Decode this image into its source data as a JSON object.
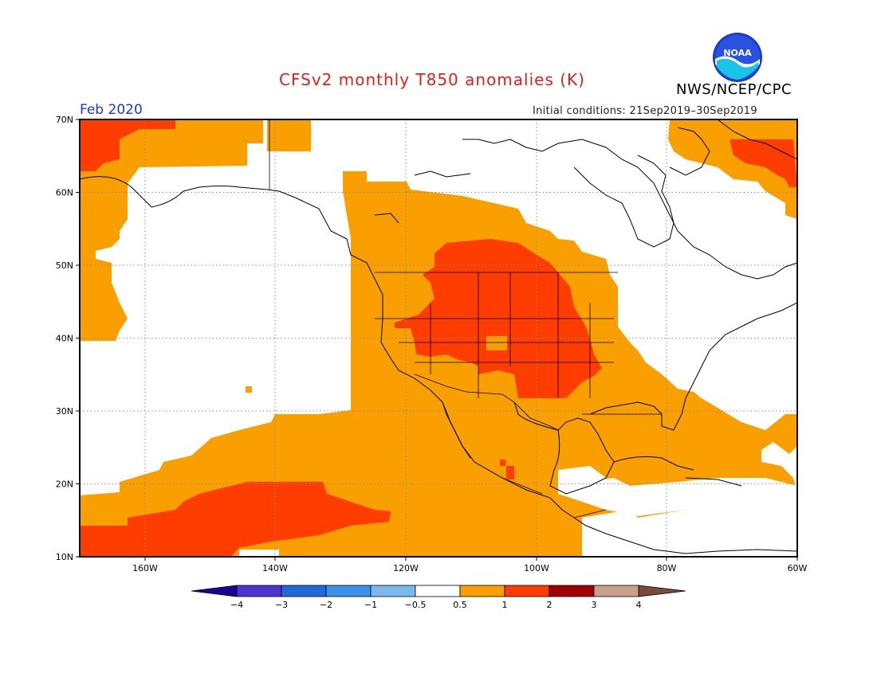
{
  "title": "CFSv2 monthly T850 anomalies (K)",
  "agency": "NWS/NCEP/CPC",
  "valid_month": "Feb 2020",
  "initial_conditions": "Initial conditions: 21Sep2019–30Sep2019",
  "logo_text": "NOAA",
  "map": {
    "lat_labels": [
      "70N",
      "60N",
      "50N",
      "40N",
      "30N",
      "20N",
      "10N"
    ],
    "lon_labels": [
      "160W",
      "140W",
      "120W",
      "100W",
      "80W",
      "60W"
    ],
    "colors": {
      "warm1": "#f9a000",
      "warm2": "#ff3d00",
      "coast": "#000000",
      "frame": "#000000",
      "grid": "#8c8c8c"
    }
  },
  "colorbar": {
    "labels": [
      "−4",
      "−3",
      "−2",
      "−1",
      "−0.5",
      "0.5",
      "1",
      "2",
      "3",
      "4"
    ],
    "colors": [
      "#1e0096",
      "#4b35d2",
      "#1f6bd8",
      "#3a92ea",
      "#7ab8f0",
      "#ffffff",
      "#f9a000",
      "#ff3d00",
      "#a00000",
      "#c8a08c",
      "#7a4a3a"
    ]
  }
}
